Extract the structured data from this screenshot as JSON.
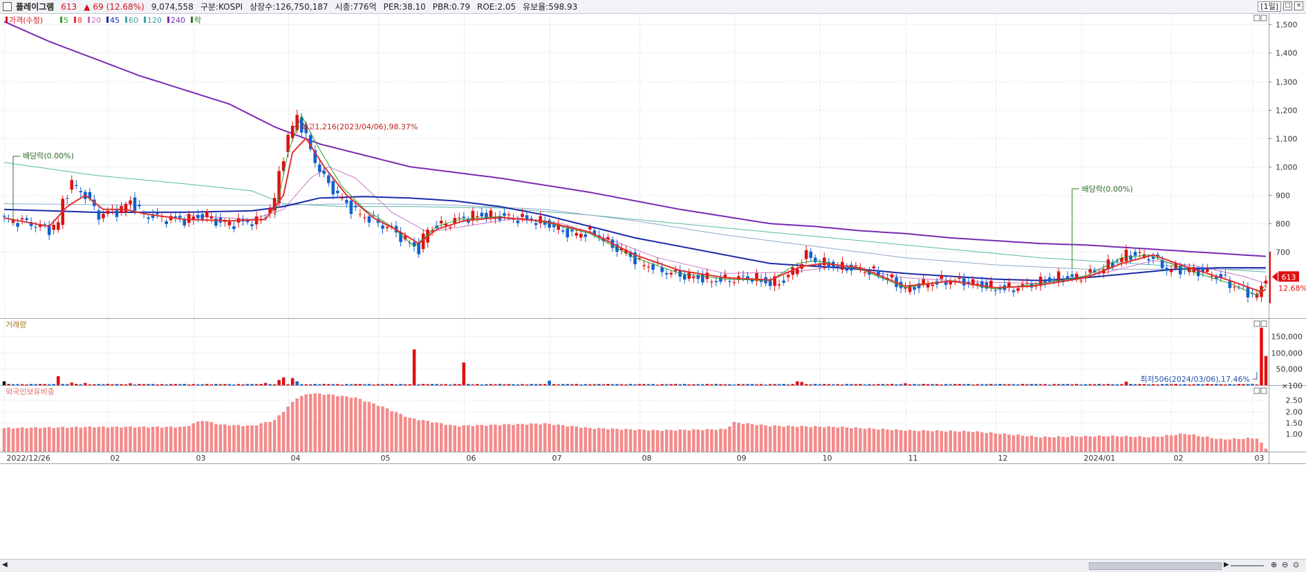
{
  "header": {
    "name": "플레이그램",
    "price": "613",
    "arrow": "▲",
    "change": "69",
    "change_pct": "(12.68%)",
    "volume": "9,074,558",
    "market": "구분:KOSPI",
    "shares": "상장수:126,750,187",
    "mcap": "시총:776억",
    "per": "PER:38.10",
    "pbr": "PBR:0.79",
    "roe": "ROE:2.05",
    "float": "유보율:598.93",
    "period_button": "[1일]"
  },
  "legend": {
    "items": [
      {
        "label": "가격(수정)",
        "color": "#d4101a"
      },
      {
        "label": "5",
        "color": "#2a9d2a"
      },
      {
        "label": "8",
        "color": "#e03030"
      },
      {
        "label": "20",
        "color": "#c070c0"
      },
      {
        "label": "45",
        "color": "#1a2aa8"
      },
      {
        "label": "60",
        "color": "#40a0a0"
      },
      {
        "label": "120",
        "color": "#40a0a0"
      },
      {
        "label": "240",
        "color": "#7a2ab0"
      },
      {
        "label": "락",
        "color": "#2a7a2a"
      }
    ]
  },
  "chart_data": [
    {
      "type": "candlestick",
      "name": "price",
      "y_ticks": [
        700,
        800,
        900,
        1000,
        1100,
        1200,
        1300,
        1400,
        1500
      ],
      "y_tick_labels": [
        "700",
        "800",
        "900",
        "1,000",
        "1,100",
        "1,200",
        "1,300",
        "1,400",
        "1,500"
      ],
      "ylim": [
        480,
        1525
      ],
      "x_labels": [
        "2022/12/26",
        "02",
        "03",
        "04",
        "05",
        "06",
        "07",
        "08",
        "09",
        "10",
        "11",
        "12",
        "2024/01",
        "02",
        "03"
      ],
      "x_label_index": [
        0,
        23,
        42,
        63,
        83,
        102,
        121,
        141,
        162,
        181,
        200,
        220,
        239,
        259,
        277
      ],
      "close_path": [
        [
          0,
          815
        ],
        [
          5,
          805
        ],
        [
          10,
          780
        ],
        [
          12,
          800
        ],
        [
          13,
          880
        ],
        [
          15,
          940
        ],
        [
          18,
          900
        ],
        [
          21,
          830
        ],
        [
          26,
          850
        ],
        [
          28,
          880
        ],
        [
          31,
          830
        ],
        [
          35,
          820
        ],
        [
          40,
          815
        ],
        [
          45,
          830
        ],
        [
          48,
          800
        ],
        [
          53,
          805
        ],
        [
          57,
          810
        ],
        [
          60,
          880
        ],
        [
          61,
          980
        ],
        [
          63,
          1100
        ],
        [
          65,
          1180
        ],
        [
          67,
          1100
        ],
        [
          69,
          1020
        ],
        [
          71,
          960
        ],
        [
          74,
          900
        ],
        [
          78,
          840
        ],
        [
          82,
          810
        ],
        [
          86,
          780
        ],
        [
          90,
          730
        ],
        [
          92,
          710
        ],
        [
          94,
          780
        ],
        [
          98,
          800
        ],
        [
          102,
          820
        ],
        [
          106,
          830
        ],
        [
          110,
          825
        ],
        [
          114,
          820
        ],
        [
          118,
          810
        ],
        [
          122,
          790
        ],
        [
          126,
          760
        ],
        [
          129,
          770
        ],
        [
          132,
          760
        ],
        [
          135,
          720
        ],
        [
          138,
          700
        ],
        [
          141,
          660
        ],
        [
          144,
          650
        ],
        [
          147,
          630
        ],
        [
          150,
          620
        ],
        [
          154,
          610
        ],
        [
          158,
          600
        ],
        [
          162,
          605
        ],
        [
          166,
          610
        ],
        [
          170,
          590
        ],
        [
          173,
          600
        ],
        [
          176,
          650
        ],
        [
          178,
          690
        ],
        [
          181,
          660
        ],
        [
          185,
          650
        ],
        [
          190,
          640
        ],
        [
          195,
          620
        ],
        [
          198,
          590
        ],
        [
          200,
          570
        ],
        [
          205,
          590
        ],
        [
          210,
          600
        ],
        [
          214,
          595
        ],
        [
          218,
          580
        ],
        [
          222,
          570
        ],
        [
          226,
          580
        ],
        [
          230,
          595
        ],
        [
          234,
          610
        ],
        [
          238,
          610
        ],
        [
          242,
          630
        ],
        [
          246,
          660
        ],
        [
          249,
          690
        ],
        [
          252,
          690
        ],
        [
          255,
          680
        ],
        [
          258,
          640
        ],
        [
          262,
          640
        ],
        [
          266,
          630
        ],
        [
          270,
          610
        ],
        [
          273,
          580
        ],
        [
          276,
          560
        ],
        [
          278,
          544
        ],
        [
          280,
          613
        ]
      ],
      "ma5": [
        [
          60,
          820
        ],
        [
          63,
          1050
        ],
        [
          66,
          1180
        ],
        [
          70,
          1060
        ],
        [
          75,
          930
        ],
        [
          80,
          850
        ],
        [
          86,
          790
        ],
        [
          91,
          720
        ],
        [
          96,
          790
        ],
        [
          101,
          815
        ],
        [
          110,
          825
        ],
        [
          120,
          805
        ],
        [
          130,
          765
        ],
        [
          140,
          680
        ],
        [
          150,
          625
        ],
        [
          160,
          605
        ],
        [
          170,
          600
        ],
        [
          176,
          660
        ],
        [
          180,
          670
        ],
        [
          190,
          640
        ],
        [
          200,
          575
        ],
        [
          210,
          600
        ],
        [
          220,
          570
        ],
        [
          230,
          590
        ],
        [
          240,
          615
        ],
        [
          248,
          680
        ],
        [
          254,
          690
        ],
        [
          262,
          640
        ],
        [
          272,
          590
        ],
        [
          278,
          548
        ],
        [
          280,
          585
        ]
      ],
      "ma8": [
        [
          0,
          820
        ],
        [
          10,
          790
        ],
        [
          14,
          860
        ],
        [
          18,
          900
        ],
        [
          22,
          850
        ],
        [
          27,
          850
        ],
        [
          31,
          835
        ],
        [
          40,
          815
        ],
        [
          50,
          810
        ],
        [
          58,
          815
        ],
        [
          62,
          900
        ],
        [
          64,
          1050
        ],
        [
          67,
          1100
        ],
        [
          71,
          1000
        ],
        [
          76,
          900
        ],
        [
          82,
          820
        ],
        [
          88,
          770
        ],
        [
          92,
          730
        ],
        [
          96,
          780
        ],
        [
          102,
          810
        ],
        [
          110,
          822
        ],
        [
          120,
          808
        ],
        [
          130,
          770
        ],
        [
          140,
          690
        ],
        [
          150,
          635
        ],
        [
          160,
          610
        ],
        [
          170,
          602
        ],
        [
          177,
          650
        ],
        [
          182,
          660
        ],
        [
          190,
          645
        ],
        [
          200,
          580
        ],
        [
          210,
          598
        ],
        [
          220,
          575
        ],
        [
          228,
          580
        ],
        [
          240,
          610
        ],
        [
          248,
          660
        ],
        [
          255,
          690
        ],
        [
          262,
          650
        ],
        [
          272,
          600
        ],
        [
          279,
          560
        ],
        [
          280,
          570
        ]
      ],
      "ma20": [
        [
          40,
          830
        ],
        [
          55,
          815
        ],
        [
          62,
          850
        ],
        [
          68,
          960
        ],
        [
          72,
          1000
        ],
        [
          78,
          960
        ],
        [
          86,
          840
        ],
        [
          94,
          770
        ],
        [
          102,
          790
        ],
        [
          114,
          820
        ],
        [
          124,
          800
        ],
        [
          135,
          740
        ],
        [
          145,
          680
        ],
        [
          160,
          625
        ],
        [
          175,
          630
        ],
        [
          185,
          650
        ],
        [
          200,
          610
        ],
        [
          215,
          595
        ],
        [
          230,
          590
        ],
        [
          245,
          630
        ],
        [
          255,
          670
        ],
        [
          265,
          650
        ],
        [
          275,
          615
        ],
        [
          280,
          590
        ]
      ],
      "ma45": [
        [
          0,
          850
        ],
        [
          20,
          840
        ],
        [
          40,
          840
        ],
        [
          55,
          845
        ],
        [
          62,
          860
        ],
        [
          70,
          890
        ],
        [
          80,
          895
        ],
        [
          90,
          890
        ],
        [
          100,
          880
        ],
        [
          110,
          860
        ],
        [
          120,
          830
        ],
        [
          130,
          790
        ],
        [
          140,
          750
        ],
        [
          150,
          720
        ],
        [
          160,
          690
        ],
        [
          170,
          660
        ],
        [
          180,
          650
        ],
        [
          190,
          640
        ],
        [
          200,
          625
        ],
        [
          210,
          615
        ],
        [
          220,
          605
        ],
        [
          230,
          600
        ],
        [
          240,
          610
        ],
        [
          250,
          625
        ],
        [
          260,
          640
        ],
        [
          270,
          645
        ],
        [
          280,
          645
        ]
      ],
      "ma60": [
        [
          0,
          870
        ],
        [
          30,
          865
        ],
        [
          60,
          865
        ],
        [
          80,
          870
        ],
        [
          100,
          865
        ],
        [
          120,
          850
        ],
        [
          140,
          810
        ],
        [
          160,
          760
        ],
        [
          180,
          720
        ],
        [
          200,
          680
        ],
        [
          220,
          655
        ],
        [
          240,
          640
        ],
        [
          260,
          640
        ],
        [
          280,
          640
        ]
      ],
      "ma120": [
        [
          0,
          1015
        ],
        [
          20,
          970
        ],
        [
          40,
          940
        ],
        [
          55,
          915
        ],
        [
          62,
          870
        ],
        [
          75,
          860
        ],
        [
          90,
          860
        ],
        [
          110,
          855
        ],
        [
          130,
          830
        ],
        [
          150,
          800
        ],
        [
          170,
          770
        ],
        [
          190,
          740
        ],
        [
          210,
          710
        ],
        [
          230,
          680
        ],
        [
          250,
          660
        ],
        [
          270,
          640
        ],
        [
          280,
          630
        ]
      ],
      "ma240": [
        [
          0,
          1510
        ],
        [
          10,
          1440
        ],
        [
          20,
          1380
        ],
        [
          30,
          1320
        ],
        [
          40,
          1270
        ],
        [
          50,
          1220
        ],
        [
          60,
          1140
        ],
        [
          70,
          1080
        ],
        [
          80,
          1040
        ],
        [
          90,
          1000
        ],
        [
          100,
          980
        ],
        [
          110,
          960
        ],
        [
          120,
          935
        ],
        [
          130,
          910
        ],
        [
          140,
          880
        ],
        [
          150,
          850
        ],
        [
          160,
          825
        ],
        [
          170,
          800
        ],
        [
          180,
          790
        ],
        [
          190,
          775
        ],
        [
          200,
          765
        ],
        [
          210,
          750
        ],
        [
          220,
          740
        ],
        [
          230,
          730
        ],
        [
          240,
          725
        ],
        [
          250,
          715
        ],
        [
          260,
          705
        ],
        [
          270,
          695
        ],
        [
          280,
          685
        ]
      ],
      "annotations": [
        {
          "text": "배당락(0.00%)",
          "index": 2
        },
        {
          "text": "최고1,216(2023/04/06),98.37%",
          "index": 64
        },
        {
          "text": "배당락(0.00%)",
          "index": 237
        },
        {
          "text": "최저506(2024/03/06),17.46%",
          "index": 278
        }
      ],
      "last_price_label": "613",
      "last_pct_label": "12.68%"
    },
    {
      "type": "bar",
      "name": "volume",
      "title": "거래량",
      "y_ticks": [
        100,
        50000,
        100000,
        150000
      ],
      "y_tick_labels": [
        "×100",
        "50,000",
        "100,000",
        "150,000"
      ],
      "ylim": [
        0,
        185000
      ],
      "base": 2000,
      "spikes": [
        {
          "index": 0,
          "value": 12000,
          "up": false
        },
        {
          "index": 12,
          "value": 28000,
          "up": true
        },
        {
          "index": 15,
          "value": 8000,
          "up": true
        },
        {
          "index": 18,
          "value": 7000,
          "up": true
        },
        {
          "index": 28,
          "value": 6000,
          "up": true
        },
        {
          "index": 58,
          "value": 7000,
          "up": true
        },
        {
          "index": 61,
          "value": 16000,
          "up": true
        },
        {
          "index": 62,
          "value": 24000,
          "up": true
        },
        {
          "index": 64,
          "value": 22000,
          "up": true
        },
        {
          "index": 65,
          "value": 12000,
          "up": false
        },
        {
          "index": 91,
          "value": 110000,
          "up": true
        },
        {
          "index": 102,
          "value": 70000,
          "up": true
        },
        {
          "index": 121,
          "value": 14000,
          "up": false
        },
        {
          "index": 176,
          "value": 12000,
          "up": true
        },
        {
          "index": 177,
          "value": 10000,
          "up": true
        },
        {
          "index": 200,
          "value": 6000,
          "up": true
        },
        {
          "index": 249,
          "value": 11000,
          "up": true
        },
        {
          "index": 279,
          "value": 177000,
          "up": true
        },
        {
          "index": 280,
          "value": 90000,
          "up": true
        }
      ]
    },
    {
      "type": "bar",
      "name": "foreign_ratio",
      "title": "외국인보유비중",
      "y_ticks": [
        1.0,
        1.5,
        2.0,
        2.5
      ],
      "y_tick_labels": [
        "1.00",
        "1.50",
        "2.00",
        "2.50"
      ],
      "ylim": [
        0.2,
        2.85
      ],
      "profile": [
        [
          0,
          1.25
        ],
        [
          20,
          1.3
        ],
        [
          40,
          1.3
        ],
        [
          44,
          1.6
        ],
        [
          48,
          1.4
        ],
        [
          55,
          1.35
        ],
        [
          60,
          1.6
        ],
        [
          63,
          2.2
        ],
        [
          65,
          2.6
        ],
        [
          68,
          2.8
        ],
        [
          72,
          2.75
        ],
        [
          78,
          2.6
        ],
        [
          84,
          2.2
        ],
        [
          90,
          1.7
        ],
        [
          100,
          1.35
        ],
        [
          120,
          1.45
        ],
        [
          130,
          1.25
        ],
        [
          145,
          1.15
        ],
        [
          160,
          1.2
        ],
        [
          162,
          1.5
        ],
        [
          170,
          1.35
        ],
        [
          185,
          1.3
        ],
        [
          200,
          1.15
        ],
        [
          215,
          1.1
        ],
        [
          230,
          0.85
        ],
        [
          245,
          0.9
        ],
        [
          255,
          0.85
        ],
        [
          262,
          1.0
        ],
        [
          270,
          0.75
        ],
        [
          278,
          0.8
        ],
        [
          280,
          0.35
        ]
      ]
    }
  ]
}
